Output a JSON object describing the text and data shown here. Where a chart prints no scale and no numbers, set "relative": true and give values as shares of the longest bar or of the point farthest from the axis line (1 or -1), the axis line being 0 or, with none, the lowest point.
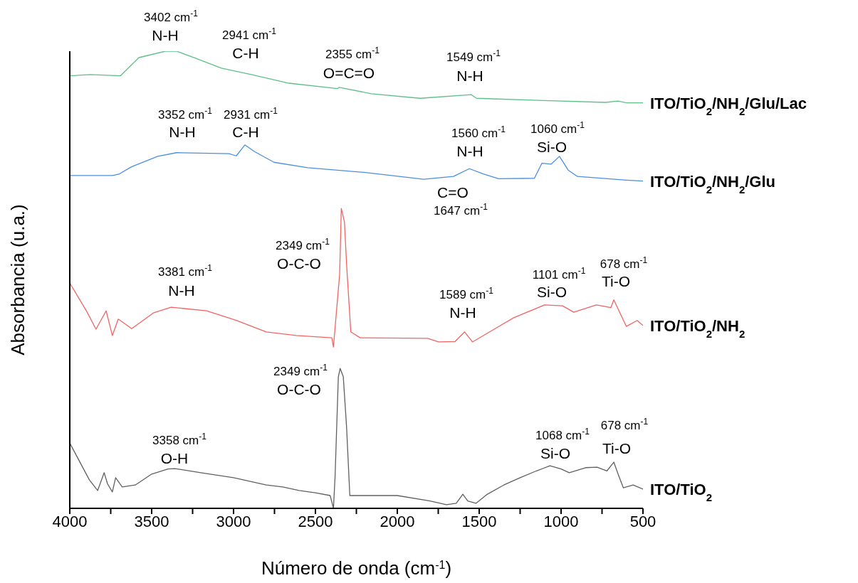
{
  "chart_data": {
    "type": "line",
    "relative": true,
    "xlabel": "Número de onda (cm$^{-1}$)",
    "ylabel": "Absorbancia (u.a.)",
    "xlim": [
      4000,
      500
    ],
    "xticks": [
      4000,
      {
        "value": 3750,
        "label": null
      },
      3500,
      {
        "value": 3250,
        "label": null
      },
      3000,
      {
        "value": 2750,
        "label": null
      },
      2500,
      {
        "value": 2250,
        "label": null
      },
      2000,
      {
        "value": 1750,
        "label": null
      },
      1500,
      {
        "value": 1250,
        "label": null
      },
      1000,
      {
        "value": 750,
        "label": null
      },
      500
    ],
    "series": [
      {
        "name": "ITO/TiO$_{2}$/NH$_{2}$/Glu/Lac",
        "color": "#5fbf8a",
        "x": [
          4000,
          3875,
          3691,
          3578,
          3417,
          3348,
          3235,
          3074,
          2891,
          2662,
          2365,
          2355,
          2159,
          1861,
          1549,
          1517,
          1106,
          729,
          652,
          600,
          500
        ],
        "values": [
          0.946,
          0.949,
          0.946,
          0.986,
          1,
          1,
          0.985,
          0.963,
          0.949,
          0.93,
          0.918,
          0.921,
          0.907,
          0.897,
          0.905,
          0.897,
          0.892,
          0.888,
          0.891,
          0.887,
          0.887
        ]
      },
      {
        "name": "ITO/TiO$_{2}$/NH$_{2}$/Glu",
        "color": "#4a8fe0",
        "x": [
          4000,
          3739,
          3700,
          3623,
          3463,
          3348,
          3028,
          2983,
          2931,
          2870,
          2753,
          2548,
          2204,
          1839,
          1657,
          1560,
          1472,
          1381,
          1163,
          1117,
          1060,
          1010,
          957,
          900,
          602,
          500
        ],
        "values": [
          0.728,
          0.728,
          0.731,
          0.747,
          0.77,
          0.778,
          0.776,
          0.771,
          0.795,
          0.78,
          0.757,
          0.745,
          0.735,
          0.72,
          0.726,
          0.743,
          0.731,
          0.721,
          0.722,
          0.755,
          0.753,
          0.77,
          0.74,
          0.726,
          0.718,
          0.716
        ]
      },
      {
        "name": "ITO/TiO$_{2}$/NH$_{2}$",
        "color": "#f06464",
        "x": [
          4000,
          3897,
          3840,
          3778,
          3740,
          3704,
          3622,
          3487,
          3381,
          3165,
          2983,
          2800,
          2617,
          2400,
          2390,
          2352,
          2342,
          2323,
          2309,
          2284,
          2227,
          1815,
          1748,
          1647,
          1589,
          1541,
          1403,
          1289,
          1101,
          991,
          923,
          785,
          696,
          678,
          602,
          535,
          500
        ],
        "values": [
          0.493,
          0.431,
          0.392,
          0.432,
          0.378,
          0.414,
          0.393,
          0.428,
          0.44,
          0.432,
          0.411,
          0.386,
          0.378,
          0.373,
          0.353,
          0.513,
          0.656,
          0.627,
          0.529,
          0.386,
          0.373,
          0.372,
          0.364,
          0.365,
          0.386,
          0.364,
          0.393,
          0.417,
          0.445,
          0.443,
          0.429,
          0.445,
          0.439,
          0.456,
          0.398,
          0.411,
          0.4
        ]
      },
      {
        "name": "ITO/TiO$_{2}$",
        "color": "#606060",
        "x": [
          4000,
          3950,
          3880,
          3830,
          3790,
          3770,
          3740,
          3720,
          3680,
          3600,
          3500,
          3400,
          3358,
          3200,
          3000,
          2800,
          2700,
          2600,
          2500,
          2410,
          2390,
          2380,
          2360,
          2349,
          2330,
          2310,
          2290,
          2250,
          2000,
          1800,
          1700,
          1640,
          1600,
          1570,
          1520,
          1450,
          1350,
          1250,
          1150,
          1068,
          1000,
          950,
          850,
          780,
          720,
          678,
          650,
          620,
          560,
          500
        ],
        "values": [
          0.143,
          0.109,
          0.062,
          0.039,
          0.078,
          0.054,
          0.036,
          0.067,
          0.047,
          0.051,
          0.075,
          0.086,
          0.087,
          0.078,
          0.067,
          0.051,
          0.047,
          0.039,
          0.034,
          0.028,
          0,
          0.07,
          0.288,
          0.306,
          0.288,
          0.179,
          0.028,
          0.028,
          0.028,
          0.016,
          0.008,
          0.011,
          0.031,
          0.016,
          0.011,
          0.031,
          0.051,
          0.067,
          0.082,
          0.093,
          0.086,
          0.078,
          0.089,
          0.09,
          0.082,
          0.101,
          0.073,
          0.045,
          0.051,
          0.042
        ]
      }
    ],
    "annotations": [
      "3402 cm$^{-1}$",
      "N-H",
      "2941 cm$^{-1}$",
      "C-H",
      "2355 cm$^{-1}$",
      "O=C=O",
      "1549 cm$^{-1}$",
      "N-H",
      "3352 cm$^{-1}$",
      "N-H",
      "2931 cm$^{-1}$",
      "C-H",
      "1560 cm$^{-1}$",
      "N-H",
      "1060 cm$^{-1}$",
      "Si-O",
      "C=O",
      "1647 cm$^{-1}$",
      "2349 cm$^{-1}$",
      "O-C-O",
      "3381 cm$^{-1}$",
      "N-H",
      "1589 cm$^{-1}$",
      "N-H",
      "1101 cm$^{-1}$",
      "Si-O",
      "678 cm$^{-1}$",
      "Ti-O",
      "2349 cm$^{-1}$",
      "O-C-O",
      "3358 cm$^{-1}$",
      "O-H",
      "1068 cm$^{-1}$",
      "Si-O",
      "678 cm$^{-1}$",
      "Ti-O"
    ]
  }
}
